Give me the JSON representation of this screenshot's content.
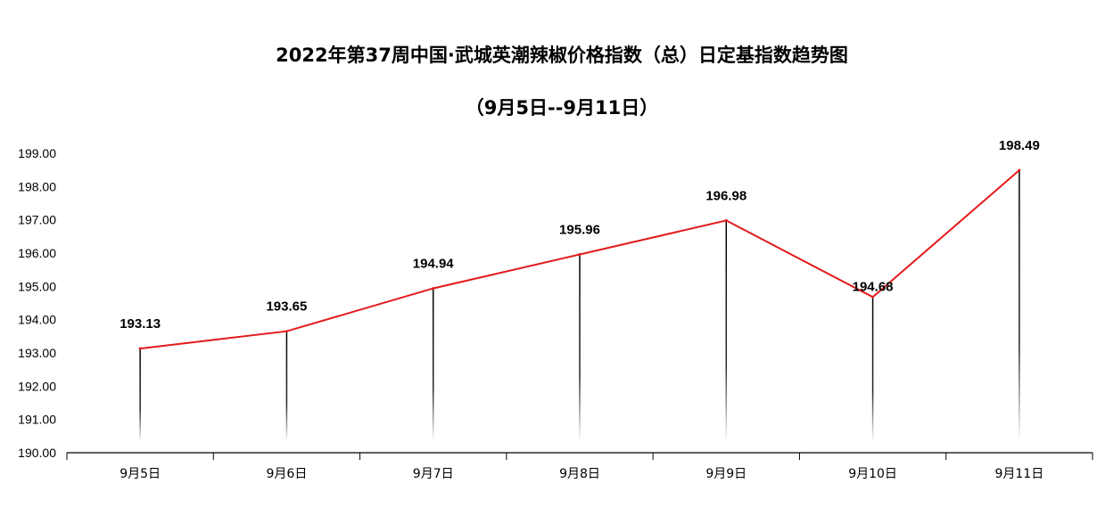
{
  "chart_data": {
    "type": "line",
    "title": "2022年第37周中国·武城英潮辣椒价格指数（总）日定基指数趋势图",
    "subtitle": "（9月5日--9月11日）",
    "xlabel": "",
    "ylabel": "",
    "categories": [
      "9月5日",
      "9月6日",
      "9月7日",
      "9月8日",
      "9月9日",
      "9月10日",
      "9月11日"
    ],
    "series": [
      {
        "values": [
          193.13,
          193.65,
          194.94,
          195.96,
          196.98,
          194.68,
          198.49
        ]
      }
    ],
    "data_labels": [
      "193.13",
      "193.65",
      "194.94",
      "195.96",
      "196.98",
      "194.68",
      "198.49"
    ],
    "ylim": [
      190,
      199
    ],
    "yticks": [
      190,
      191,
      192,
      193,
      194,
      195,
      196,
      197,
      198,
      199
    ],
    "ytick_labels": [
      "190.00",
      "191.00",
      "192.00",
      "193.00",
      "194.00",
      "195.00",
      "196.00",
      "197.00",
      "198.00",
      "199.00"
    ],
    "grid": false,
    "legend": "none",
    "line_color": "#e31a1c",
    "drop_line_color": "#000000"
  }
}
